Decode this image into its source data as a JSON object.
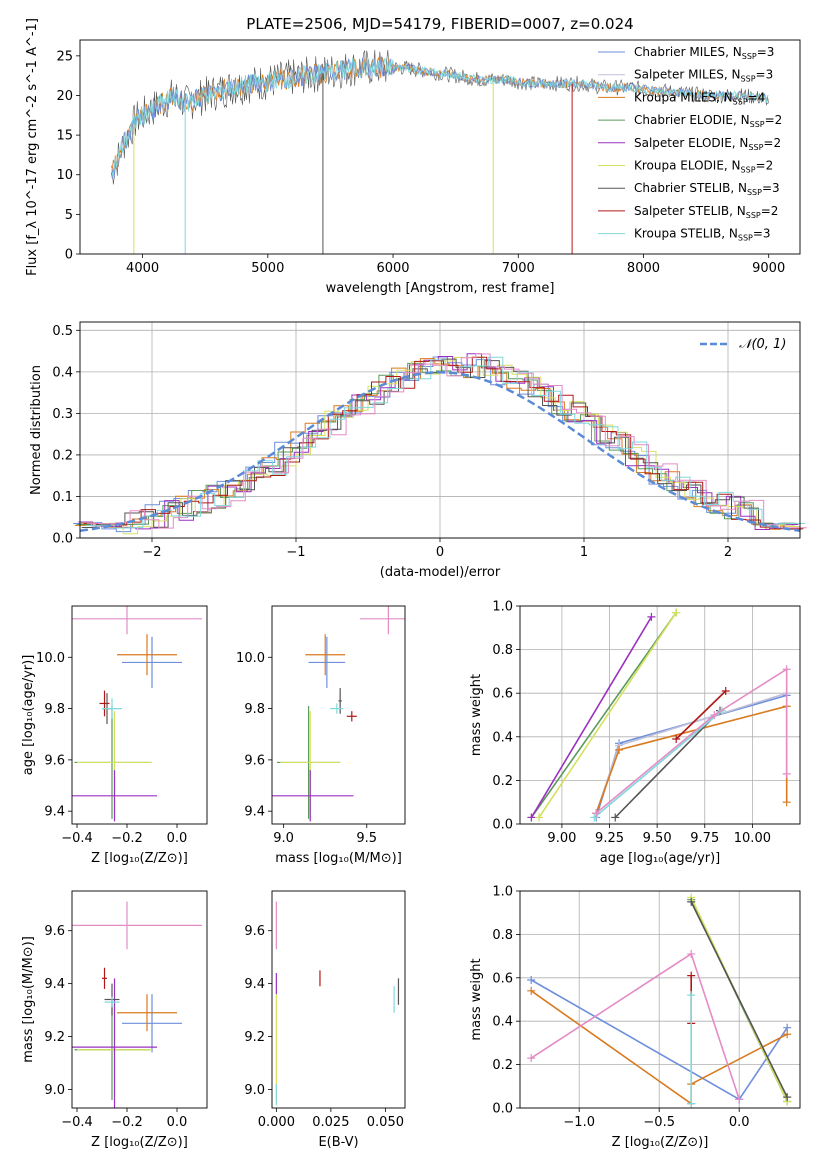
{
  "colors": {
    "chabrier_miles": "#6d8fdc",
    "salpeter_miles": "#c0c0d8",
    "kroupa_miles": "#d97a1f",
    "chabrier_elodie": "#5a9a5a",
    "salpeter_elodie": "#9b30c0",
    "kroupa_elodie": "#d6e060",
    "chabrier_stelib": "#555555",
    "salpeter_stelib": "#b01818",
    "kroupa_stelib": "#7fd8dc",
    "pink": "#e38cc6",
    "gauss": "#5b8bd6"
  },
  "chart_data": [
    {
      "type": "line",
      "title": "PLATE=2506, MJD=54179, FIBERID=0007, z=0.024",
      "xlabel": "wavelength [Angstrom, rest frame]",
      "ylabel": "Flux [f_λ 10^-17 erg cm^-2 s^-1 A^-1]",
      "xlim": [
        3500,
        9250
      ],
      "ylim": [
        0,
        27
      ],
      "xticks": [
        "4000",
        "5000",
        "6000",
        "7000",
        "8000",
        "9000"
      ],
      "yticks": [
        "0",
        "5",
        "10",
        "15",
        "20",
        "25"
      ],
      "spectrum_points": [
        [
          3750,
          10
        ],
        [
          3850,
          14
        ],
        [
          3950,
          17
        ],
        [
          4050,
          18
        ],
        [
          4150,
          19
        ],
        [
          4250,
          20
        ],
        [
          4350,
          19
        ],
        [
          4500,
          20
        ],
        [
          4700,
          21
        ],
        [
          4900,
          21.5
        ],
        [
          5100,
          22
        ],
        [
          5300,
          22.5
        ],
        [
          5500,
          23
        ],
        [
          5700,
          23.5
        ],
        [
          5900,
          23.5
        ],
        [
          6100,
          23.5
        ],
        [
          6300,
          23
        ],
        [
          6500,
          22.5
        ],
        [
          6700,
          22
        ],
        [
          6900,
          22
        ],
        [
          7100,
          21.5
        ],
        [
          7300,
          21.5
        ],
        [
          7500,
          21.5
        ],
        [
          7700,
          21
        ],
        [
          7900,
          21
        ],
        [
          8200,
          20.5
        ],
        [
          8500,
          20
        ],
        [
          8800,
          20
        ],
        [
          9000,
          19.5
        ]
      ],
      "legend": [
        {
          "label": "Chabrier MILES, N",
          "sub": "SSP",
          "value": "=3",
          "color_key": "chabrier_miles"
        },
        {
          "label": "Salpeter MILES, N",
          "sub": "SSP",
          "value": "=3",
          "color_key": "salpeter_miles"
        },
        {
          "label": "Kroupa MILES, N",
          "sub": "SSP",
          "value": "=4",
          "color_key": "kroupa_miles"
        },
        {
          "label": "Chabrier ELODIE, N",
          "sub": "SSP",
          "value": "=2",
          "color_key": "chabrier_elodie"
        },
        {
          "label": "Salpeter ELODIE, N",
          "sub": "SSP",
          "value": "=2",
          "color_key": "salpeter_elodie"
        },
        {
          "label": "Kroupa ELODIE, N",
          "sub": "SSP",
          "value": "=2",
          "color_key": "kroupa_elodie"
        },
        {
          "label": "Chabrier STELIB, N",
          "sub": "SSP",
          "value": "=3",
          "color_key": "chabrier_stelib"
        },
        {
          "label": "Salpeter STELIB, N",
          "sub": "SSP",
          "value": "=2",
          "color_key": "salpeter_stelib"
        },
        {
          "label": "Kroupa STELIB, N",
          "sub": "SSP",
          "value": "=3",
          "color_key": "kroupa_stelib"
        }
      ]
    },
    {
      "type": "line",
      "xlabel": "(data-model)/error",
      "ylabel": "Normed distribution",
      "xlim": [
        -2.5,
        2.5
      ],
      "ylim": [
        0,
        0.52
      ],
      "xticks": [
        "−2",
        "−1",
        "0",
        "1",
        "2"
      ],
      "yticks": [
        "0.0",
        "0.1",
        "0.2",
        "0.3",
        "0.4",
        "0.5"
      ],
      "legend_label": "𝒩(0, 1)",
      "grid": true
    },
    {
      "type": "scatter",
      "xlabel": "Z [log₁₀(Z/Z⊙)]",
      "ylabel": "age  [log₁₀(age/yr)]",
      "xlim": [
        -0.42,
        0.12
      ],
      "ylim": [
        9.35,
        10.2
      ],
      "xticks": [
        "−0.4",
        "−0.2",
        "0.0"
      ],
      "yticks": [
        "9.4",
        "9.6",
        "9.8",
        "10.0"
      ],
      "points": [
        {
          "x": -0.1,
          "y": 9.98,
          "xe": 0.12,
          "ye": 0.1,
          "c": "chabrier_miles"
        },
        {
          "x": -0.12,
          "y": 10.01,
          "xe": 0.12,
          "ye": 0.08,
          "c": "kroupa_miles"
        },
        {
          "x": -0.2,
          "y": 10.15,
          "xe": 0.3,
          "ye": 0.06,
          "c": "pink"
        },
        {
          "x": -0.26,
          "y": 9.59,
          "xe": 0.15,
          "ye": 0.22,
          "c": "chabrier_elodie"
        },
        {
          "x": -0.25,
          "y": 9.59,
          "xe": 0.15,
          "ye": 0.2,
          "c": "kroupa_elodie"
        },
        {
          "x": -0.25,
          "y": 9.46,
          "xe": 0.17,
          "ye": 0.1,
          "c": "salpeter_elodie"
        },
        {
          "x": -0.29,
          "y": 9.82,
          "xe": 0.02,
          "ye": 0.05,
          "c": "salpeter_stelib"
        },
        {
          "x": -0.28,
          "y": 9.8,
          "xe": 0.02,
          "ye": 0.06,
          "c": "chabrier_stelib"
        },
        {
          "x": -0.26,
          "y": 9.8,
          "xe": 0.04,
          "ye": 0.04,
          "c": "kroupa_stelib"
        }
      ]
    },
    {
      "type": "scatter",
      "xlabel": "mass [log₁₀(M/M⊙)]",
      "ylabel": "",
      "xlim": [
        8.93,
        9.73
      ],
      "ylim": [
        9.35,
        10.2
      ],
      "xticks": [
        "9.0",
        "9.5"
      ],
      "yticks": [
        "9.4",
        "9.6",
        "9.8",
        "10.0"
      ],
      "points": [
        {
          "x": 9.26,
          "y": 9.98,
          "xe": 0.11,
          "ye": 0.1,
          "c": "chabrier_miles"
        },
        {
          "x": 9.25,
          "y": 10.01,
          "xe": 0.12,
          "ye": 0.08,
          "c": "kroupa_miles"
        },
        {
          "x": 9.63,
          "y": 10.15,
          "xe": 0.17,
          "ye": 0.06,
          "c": "pink"
        },
        {
          "x": 9.15,
          "y": 9.59,
          "xe": 0.19,
          "ye": 0.22,
          "c": "chabrier_elodie"
        },
        {
          "x": 9.16,
          "y": 9.59,
          "xe": 0.18,
          "ye": 0.2,
          "c": "kroupa_elodie"
        },
        {
          "x": 9.16,
          "y": 9.46,
          "xe": 0.26,
          "ye": 0.1,
          "c": "salpeter_elodie"
        },
        {
          "x": 9.41,
          "y": 9.77,
          "xe": 0.03,
          "ye": 0.02,
          "c": "salpeter_stelib"
        },
        {
          "x": 9.34,
          "y": 9.83,
          "xe": 0.01,
          "ye": 0.05,
          "c": "chabrier_stelib"
        },
        {
          "x": 9.32,
          "y": 9.8,
          "xe": 0.04,
          "ye": 0.02,
          "c": "kroupa_stelib"
        }
      ]
    },
    {
      "type": "line",
      "xlabel": "age  [log₁₀(age/yr)]",
      "ylabel": "mass weight",
      "xlim": [
        8.78,
        10.25
      ],
      "ylim": [
        0,
        1.0
      ],
      "xticks": [
        "9.00",
        "9.25",
        "9.50",
        "9.75",
        "10.00"
      ],
      "yticks": [
        "0.0",
        "0.2",
        "0.4",
        "0.6",
        "0.8",
        "1.0"
      ],
      "grid": true,
      "series": [
        {
          "c": "chabrier_miles",
          "pts": [
            [
              9.18,
              0.03
            ],
            [
              9.3,
              0.37
            ],
            [
              10.18,
              0.59
            ]
          ]
        },
        {
          "c": "salpeter_miles",
          "pts": [
            [
              9.18,
              0.05
            ],
            [
              9.3,
              0.36
            ],
            [
              10.18,
              0.6
            ]
          ]
        },
        {
          "c": "kroupa_miles",
          "pts": [
            [
              9.18,
              0.05
            ],
            [
              9.3,
              0.34
            ],
            [
              10.18,
              0.54
            ],
            [
              10.18,
              0.1
            ]
          ]
        },
        {
          "c": "chabrier_elodie",
          "pts": [
            [
              8.84,
              0.03
            ],
            [
              9.6,
              0.97
            ]
          ]
        },
        {
          "c": "salpeter_elodie",
          "pts": [
            [
              8.84,
              0.03
            ],
            [
              9.47,
              0.95
            ]
          ]
        },
        {
          "c": "kroupa_elodie",
          "pts": [
            [
              8.88,
              0.03
            ],
            [
              9.6,
              0.97
            ]
          ]
        },
        {
          "c": "chabrier_stelib",
          "pts": [
            [
              9.28,
              0.03
            ],
            [
              9.83,
              0.52
            ]
          ]
        },
        {
          "c": "salpeter_stelib",
          "pts": [
            [
              9.6,
              0.39
            ],
            [
              9.86,
              0.61
            ]
          ]
        },
        {
          "c": "kroupa_stelib",
          "pts": [
            [
              9.17,
              0.03
            ],
            [
              9.84,
              0.52
            ]
          ]
        },
        {
          "c": "pink",
          "pts": [
            [
              9.18,
              0.05
            ],
            [
              9.8,
              0.5
            ],
            [
              10.18,
              0.71
            ],
            [
              10.18,
              0.23
            ]
          ]
        }
      ]
    },
    {
      "type": "scatter",
      "xlabel": "Z [log₁₀(Z/Z⊙)]",
      "ylabel": "mass [log₁₀(M/M⊙)]",
      "xlim": [
        -0.42,
        0.12
      ],
      "ylim": [
        8.93,
        9.75
      ],
      "xticks": [
        "−0.4",
        "−0.2",
        "0.0"
      ],
      "yticks": [
        "9.0",
        "9.2",
        "9.4",
        "9.6"
      ],
      "points": [
        {
          "x": -0.1,
          "y": 9.25,
          "xe": 0.12,
          "ye": 0.11,
          "c": "chabrier_miles"
        },
        {
          "x": -0.12,
          "y": 9.29,
          "xe": 0.12,
          "ye": 0.07,
          "c": "kroupa_miles"
        },
        {
          "x": -0.2,
          "y": 9.62,
          "xe": 0.3,
          "ye": 0.09,
          "c": "pink"
        },
        {
          "x": -0.26,
          "y": 9.15,
          "xe": 0.15,
          "ye": 0.19,
          "c": "chabrier_elodie"
        },
        {
          "x": -0.25,
          "y": 9.15,
          "xe": 0.15,
          "ye": 0.17,
          "c": "kroupa_elodie"
        },
        {
          "x": -0.25,
          "y": 9.16,
          "xe": 0.17,
          "ye": 0.26,
          "c": "salpeter_elodie"
        },
        {
          "x": -0.29,
          "y": 9.42,
          "xe": 0.01,
          "ye": 0.04,
          "c": "salpeter_stelib"
        },
        {
          "x": -0.26,
          "y": 9.34,
          "xe": 0.03,
          "ye": 0.06,
          "c": "chabrier_stelib"
        },
        {
          "x": -0.26,
          "y": 9.33,
          "xe": 0.03,
          "ye": 0.02,
          "c": "kroupa_stelib"
        }
      ]
    },
    {
      "type": "scatter",
      "xlabel": "E(B-V)",
      "ylabel": "",
      "xlim": [
        -0.002,
        0.059
      ],
      "ylim": [
        8.93,
        9.75
      ],
      "xticks": [
        "0.000",
        "0.025",
        "0.050"
      ],
      "yticks": [
        "9.0",
        "9.2",
        "9.4",
        "9.6"
      ],
      "points": [
        {
          "x": 0.0,
          "y": 9.62,
          "xe": 0,
          "ye": 0.09,
          "c": "pink"
        },
        {
          "x": 0.0,
          "y": 9.16,
          "xe": 0,
          "ye": 0.2,
          "c": "kroupa_elodie"
        },
        {
          "x": 0.0,
          "y": 9.4,
          "xe": 0,
          "ye": 0.04,
          "c": "salpeter_elodie"
        },
        {
          "x": 0.0,
          "y": 8.98,
          "xe": 0,
          "ye": 0.04,
          "c": "kroupa_stelib"
        },
        {
          "x": 0.02,
          "y": 9.42,
          "xe": 0,
          "ye": 0.03,
          "c": "salpeter_stelib"
        },
        {
          "x": 0.054,
          "y": 9.34,
          "xe": 0,
          "ye": 0.05,
          "c": "kroupa_stelib"
        },
        {
          "x": 0.056,
          "y": 9.37,
          "xe": 0,
          "ye": 0.05,
          "c": "chabrier_stelib"
        }
      ]
    },
    {
      "type": "line",
      "xlabel": "Z [log₁₀(Z/Z⊙)]",
      "ylabel": "mass weight",
      "xlim": [
        -1.37,
        0.38
      ],
      "ylim": [
        0,
        1.0
      ],
      "xticks": [
        "−1.0",
        "−0.5",
        "0.0"
      ],
      "yticks": [
        "0.0",
        "0.2",
        "0.4",
        "0.6",
        "0.8",
        "1.0"
      ],
      "grid": true,
      "series": [
        {
          "c": "chabrier_miles",
          "pts": [
            [
              -1.3,
              0.59
            ],
            [
              0.0,
              0.04
            ],
            [
              0.3,
              0.37
            ]
          ]
        },
        {
          "c": "kroupa_miles",
          "pts": [
            [
              -1.3,
              0.54
            ],
            [
              -0.3,
              0.02
            ],
            [
              -0.3,
              0.11
            ],
            [
              0.3,
              0.34
            ]
          ]
        },
        {
          "c": "pink",
          "pts": [
            [
              -1.3,
              0.23
            ],
            [
              -0.3,
              0.71
            ],
            [
              0.0,
              0.04
            ]
          ]
        },
        {
          "c": "chabrier_elodie",
          "pts": [
            [
              -0.3,
              0.96
            ],
            [
              0.3,
              0.03
            ]
          ]
        },
        {
          "c": "kroupa_elodie",
          "pts": [
            [
              -0.3,
              0.97
            ],
            [
              0.3,
              0.03
            ]
          ]
        },
        {
          "c": "chabrier_stelib",
          "pts": [
            [
              -0.3,
              0.95
            ],
            [
              0.3,
              0.05
            ]
          ]
        },
        {
          "c": "salpeter_stelib",
          "pts": [
            [
              -0.3,
              0.61
            ],
            [
              -0.3,
              0.39
            ]
          ]
        },
        {
          "c": "kroupa_stelib",
          "pts": [
            [
              -0.3,
              0.52
            ],
            [
              -0.3,
              0.02
            ]
          ]
        }
      ]
    }
  ]
}
